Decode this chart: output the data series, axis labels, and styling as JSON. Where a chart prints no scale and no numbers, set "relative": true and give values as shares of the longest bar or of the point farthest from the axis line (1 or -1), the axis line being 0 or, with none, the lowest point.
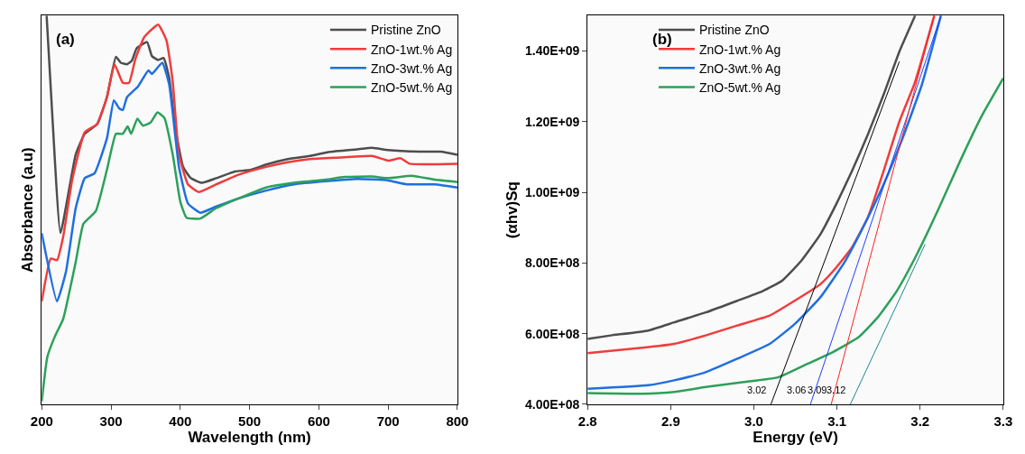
{
  "chart_data": [
    {
      "type": "line",
      "title": "(a)",
      "xlabel": "Wavelength (nm)",
      "ylabel": "Absorbance (a.u)",
      "relative": true,
      "xlim": [
        200,
        800
      ],
      "xticks": [
        200,
        300,
        400,
        500,
        600,
        700,
        800
      ],
      "legend": "top right",
      "series": [
        {
          "name": "Pristine ZnO",
          "color": "#4d4d4d",
          "x": [
            207,
            215,
            227,
            249,
            262,
            280,
            294,
            307,
            314,
            323,
            330,
            337,
            352,
            359,
            368,
            376,
            384,
            393,
            404,
            415,
            431,
            452,
            479,
            501,
            524,
            555,
            587,
            614,
            655,
            677,
            700,
            745,
            776,
            800
          ],
          "values": [
            1.0,
            0.75,
            0.441,
            0.643,
            0.696,
            0.721,
            0.79,
            0.894,
            0.879,
            0.875,
            0.884,
            0.916,
            0.932,
            0.896,
            0.886,
            0.891,
            0.839,
            0.708,
            0.611,
            0.582,
            0.57,
            0.582,
            0.599,
            0.603,
            0.617,
            0.631,
            0.639,
            0.649,
            0.656,
            0.66,
            0.654,
            0.65,
            0.65,
            0.642
          ]
        },
        {
          "name": "ZnO-1wt.% Ag",
          "color": "#f03c3c",
          "x": [
            200,
            213,
            222,
            231,
            244,
            262,
            280,
            294,
            305,
            317,
            326,
            335,
            348,
            368,
            380,
            389,
            398,
            411,
            427,
            452,
            483,
            524,
            555,
            587,
            632,
            677,
            700,
            718,
            731,
            800
          ],
          "values": [
            0.265,
            0.375,
            0.371,
            0.432,
            0.578,
            0.7,
            0.721,
            0.79,
            0.875,
            0.827,
            0.827,
            0.888,
            0.945,
            0.977,
            0.936,
            0.831,
            0.643,
            0.566,
            0.546,
            0.566,
            0.59,
            0.611,
            0.623,
            0.631,
            0.635,
            0.639,
            0.627,
            0.633,
            0.619,
            0.619
          ]
        },
        {
          "name": "ZnO-3wt.% Ag",
          "color": "#1f6fe0",
          "x": [
            200,
            222,
            235,
            249,
            262,
            276,
            294,
            304,
            312,
            317,
            323,
            339,
            354,
            359,
            374,
            384,
            398,
            411,
            429,
            452,
            483,
            524,
            564,
            610,
            655,
            700,
            727,
            767,
            800
          ],
          "values": [
            0.44,
            0.265,
            0.342,
            0.505,
            0.582,
            0.594,
            0.684,
            0.782,
            0.761,
            0.757,
            0.79,
            0.818,
            0.859,
            0.85,
            0.879,
            0.822,
            0.611,
            0.517,
            0.493,
            0.509,
            0.529,
            0.55,
            0.566,
            0.574,
            0.58,
            0.576,
            0.566,
            0.566,
            0.558
          ]
        },
        {
          "name": "ZnO-5wt.% Ag",
          "color": "#2ca05a",
          "x": [
            200,
            208,
            219,
            231,
            249,
            260,
            278,
            294,
            307,
            317,
            324,
            329,
            338,
            346,
            357,
            367,
            377,
            389,
            400,
            409,
            429,
            452,
            483,
            524,
            564,
            610,
            637,
            677,
            700,
            734,
            767,
            800
          ],
          "values": [
            0.008,
            0.122,
            0.175,
            0.22,
            0.366,
            0.464,
            0.497,
            0.603,
            0.696,
            0.696,
            0.715,
            0.696,
            0.735,
            0.717,
            0.725,
            0.751,
            0.737,
            0.643,
            0.521,
            0.48,
            0.478,
            0.505,
            0.529,
            0.558,
            0.57,
            0.578,
            0.585,
            0.586,
            0.582,
            0.588,
            0.578,
            0.572
          ]
        }
      ]
    },
    {
      "type": "line",
      "title": "(b)",
      "xlabel": "Energy (eV)",
      "ylabel": "(αhv)Sq",
      "xlim": [
        2.8,
        3.3
      ],
      "xticks": [
        2.8,
        2.9,
        {
          "value": 3.0,
          "label": "3.0"
        },
        3.1,
        3.2,
        3.3
      ],
      "ylim": [
        400000000,
        1500000000
      ],
      "yticks": [
        {
          "value": 400000000,
          "label": "4.00E+08"
        },
        {
          "value": 600000000,
          "label": "6.00E+08"
        },
        {
          "value": 800000000,
          "label": "8.00E+08"
        },
        {
          "value": 1000000000,
          "label": "1.00E+09"
        },
        {
          "value": 1200000000,
          "label": "1.20E+09"
        },
        {
          "value": 1400000000,
          "label": "1.40E+09"
        }
      ],
      "legend": "top left",
      "annotations": [
        "3.02",
        "3.06",
        "3.09",
        "3.12"
      ],
      "series": [
        {
          "name": "Pristine ZnO",
          "color": "#4d4d4d",
          "x": [
            2.8,
            2.828,
            2.873,
            2.904,
            2.942,
            2.98,
            3.011,
            3.034,
            3.057,
            3.08,
            3.099,
            3.118,
            3.137,
            3.156,
            3.175,
            3.194
          ],
          "values": [
            585000000,
            595000000,
            609000000,
            632000000,
            660000000,
            693000000,
            721000000,
            750000000,
            806000000,
            881000000,
            966000000,
            1060000000,
            1163000000,
            1276000000,
            1398000000,
            1500000000
          ]
        },
        {
          "name": "ZnO-1wt.% Ag",
          "color": "#f03c3c",
          "x": [
            2.8,
            2.866,
            2.904,
            2.942,
            2.98,
            3.019,
            3.049,
            3.08,
            3.099,
            3.118,
            3.137,
            3.156,
            3.175,
            3.194,
            3.217
          ],
          "values": [
            545000000,
            560000000,
            571000000,
            595000000,
            623000000,
            651000000,
            693000000,
            740000000,
            787000000,
            844000000,
            928000000,
            1060000000,
            1200000000,
            1313000000,
            1500000000
          ]
        },
        {
          "name": "ZnO-3wt.% Ag",
          "color": "#1f6fe0",
          "x": [
            2.8,
            2.873,
            2.904,
            2.942,
            2.98,
            3.019,
            3.049,
            3.08,
            3.11,
            3.133,
            3.156,
            3.179,
            3.202,
            3.225
          ],
          "values": [
            444000000,
            454000000,
            468000000,
            491000000,
            529000000,
            571000000,
            627000000,
            703000000,
            806000000,
            909000000,
            1022000000,
            1154000000,
            1304000000,
            1500000000
          ]
        },
        {
          "name": "ZnO-5wt.% Ag",
          "color": "#2ca05a",
          "x": [
            2.8,
            2.866,
            2.904,
            2.942,
            2.988,
            3.03,
            3.065,
            3.095,
            3.126,
            3.149,
            3.172,
            3.194,
            3.221,
            3.248,
            3.275,
            3.3
          ],
          "values": [
            432000000,
            430000000,
            435000000,
            449000000,
            463000000,
            477000000,
            515000000,
            548000000,
            590000000,
            646000000,
            721000000,
            815000000,
            947000000,
            1088000000,
            1220000000,
            1323000000
          ]
        },
        {
          "color": "#000000",
          "x": [
            3.0205,
            3.175
          ],
          "values": [
            400000000,
            1370000000
          ]
        },
        {
          "color": "#1f3fff",
          "x": [
            3.068,
            3.225
          ],
          "values": [
            400000000,
            1500000000
          ]
        },
        {
          "color": "#ff2020",
          "x": [
            3.093,
            3.217
          ],
          "values": [
            400000000,
            1500000000
          ]
        },
        {
          "color": "#1a8a8a",
          "x": [
            3.116,
            3.206
          ],
          "values": [
            400000000,
            853000000
          ]
        }
      ]
    }
  ]
}
